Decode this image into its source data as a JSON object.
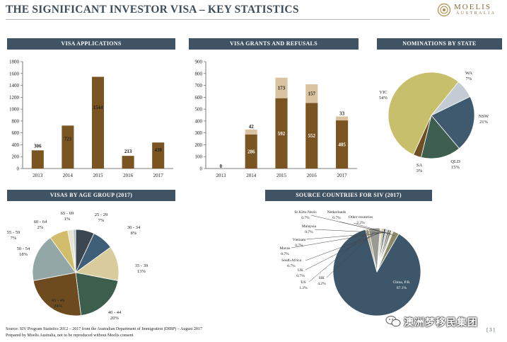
{
  "title": "THE SIGNIFICANT INVESTOR VISA – KEY STATISTICS",
  "logo": {
    "name": "MOELIS",
    "sub": "AUSTRALIA"
  },
  "sections": {
    "visa_applications": "VISA APPLICATIONS",
    "grants_refusals": "VISA GRANTS AND REFUSALS",
    "nominations": "NOMINATIONS BY STATE",
    "age_group": "VISAS BY AGE GROUP (2017)",
    "source_countries": "SOURCE COUNTRIES FOR SIV (2017)"
  },
  "colors": {
    "header": "#3f5364",
    "bar_dark": "#7a5521",
    "bar_light": "#d9c3a0"
  },
  "chart_data": [
    {
      "id": "applications",
      "type": "bar",
      "title": "VISA APPLICATIONS",
      "categories": [
        "2013",
        "2014",
        "2015",
        "2016",
        "2017"
      ],
      "values": [
        306,
        723,
        1544,
        213,
        438
      ],
      "value_labels": [
        "306",
        "723",
        "1544",
        "213",
        "438"
      ],
      "ylim": [
        0,
        1800
      ],
      "yticks": [
        0,
        200,
        400,
        600,
        800,
        1000,
        1200,
        1400,
        1600,
        1800
      ],
      "color": "#7a5521"
    },
    {
      "id": "grants",
      "type": "bar",
      "stacked": true,
      "title": "VISA GRANTS AND REFUSALS",
      "categories": [
        "2013",
        "2014",
        "2015",
        "2016",
        "2017"
      ],
      "series": [
        {
          "name": "Grants",
          "values": [
            0,
            286,
            592,
            552,
            405
          ],
          "labels": [
            "0",
            "286",
            "592",
            "552",
            "405"
          ],
          "color": "#7a5521"
        },
        {
          "name": "Refusals",
          "values": [
            0,
            42,
            173,
            157,
            33
          ],
          "labels": [
            "",
            "42",
            "173",
            "157",
            "33"
          ],
          "color": "#d9c3a0"
        }
      ],
      "ylim": [
        0,
        900
      ],
      "yticks": [
        0,
        100,
        200,
        300,
        400,
        500,
        600,
        700,
        800,
        900
      ]
    },
    {
      "id": "nominations",
      "type": "pie",
      "title": "NOMINATIONS BY STATE",
      "slices": [
        {
          "label": "WA",
          "value": 7,
          "pct": "7%",
          "color": "#c3ccd4"
        },
        {
          "label": "NSW",
          "value": 21,
          "pct": "21%",
          "color": "#3f5a6f"
        },
        {
          "label": "QLD",
          "value": 15,
          "pct": "15%",
          "color": "#3e5e50"
        },
        {
          "label": "SA",
          "value": 3,
          "pct": "3%",
          "color": "#6e4f24"
        },
        {
          "label": "VIC",
          "value": 54,
          "pct": "54%",
          "color": "#c8bf6d"
        }
      ]
    },
    {
      "id": "age",
      "type": "pie",
      "title": "VISAS BY AGE GROUP (2017)",
      "slices": [
        {
          "label": "25 - 29",
          "value": 7,
          "pct": "7%",
          "color": "#3c4650"
        },
        {
          "label": "30 - 34",
          "value": 8,
          "pct": "8%",
          "color": "#3f5e77"
        },
        {
          "label": "35 - 39",
          "value": 13,
          "pct": "13%",
          "color": "#d8cc9c"
        },
        {
          "label": "40 - 44",
          "value": 20,
          "pct": "20%",
          "color": "#3d5e4c"
        },
        {
          "label": "45 - 49",
          "value": 24,
          "pct": "24%",
          "color": "#6e4a1f"
        },
        {
          "label": "50 - 54",
          "value": 18,
          "pct": "18%",
          "color": "#93a7a6"
        },
        {
          "label": "55 - 59",
          "value": 7,
          "pct": "7%",
          "color": "#d2bd6c"
        },
        {
          "label": "60 - 64",
          "value": 2,
          "pct": "2%",
          "color": "#e9e4cf"
        },
        {
          "label": "65 - 69",
          "value": 1,
          "pct": "1%",
          "color": "#b7c4d0"
        }
      ]
    },
    {
      "id": "source",
      "type": "pie",
      "title": "SOURCE COUNTRIES FOR SIV (2017)",
      "slices": [
        {
          "label": "China, P.R.",
          "value": 87.1,
          "pct": "87.1%",
          "color": "#3d5669"
        },
        {
          "label": "US",
          "value": 1.2,
          "pct": "1.2%",
          "color": "#b3ab86"
        },
        {
          "label": "HK",
          "value": 4.2,
          "pct": "4.2%",
          "color": "#9a9a94"
        },
        {
          "label": "UK",
          "value": 0.7,
          "pct": "0.7%",
          "color": "#dedede"
        },
        {
          "label": "South Africa",
          "value": 0.7,
          "pct": "0.7%",
          "color": "#c9b06a"
        },
        {
          "label": "Macau",
          "value": 0.7,
          "pct": "0.7%",
          "color": "#2f4a5c"
        },
        {
          "label": "Vietnam",
          "value": 0.7,
          "pct": "0.7%",
          "color": "#b9c6d2"
        },
        {
          "label": "Malaysia",
          "value": 0.7,
          "pct": "0.7%",
          "color": "#7d6a3a"
        },
        {
          "label": "St Kitts-Nevis",
          "value": 0.7,
          "pct": "0.7%",
          "color": "#576b7c"
        },
        {
          "label": "Netherlands",
          "value": 0.7,
          "pct": "0.7%",
          "color": "#e8e2c6"
        },
        {
          "label": "Other countries",
          "value": 2.2,
          "pct": "2.2%",
          "color": "#8b8b6a"
        }
      ]
    }
  ],
  "footnotes": {
    "source": "Source:   SIV Program Statistics 2012 – 2017 from the Australian Department of Immigration (DIBP) – August 2017",
    "prepared": "Prepared by Moelis Australia, not to be reproduced without Moelis consent"
  },
  "watermark": "澳洲梦移民集团",
  "page_number": "[ 3 ]"
}
